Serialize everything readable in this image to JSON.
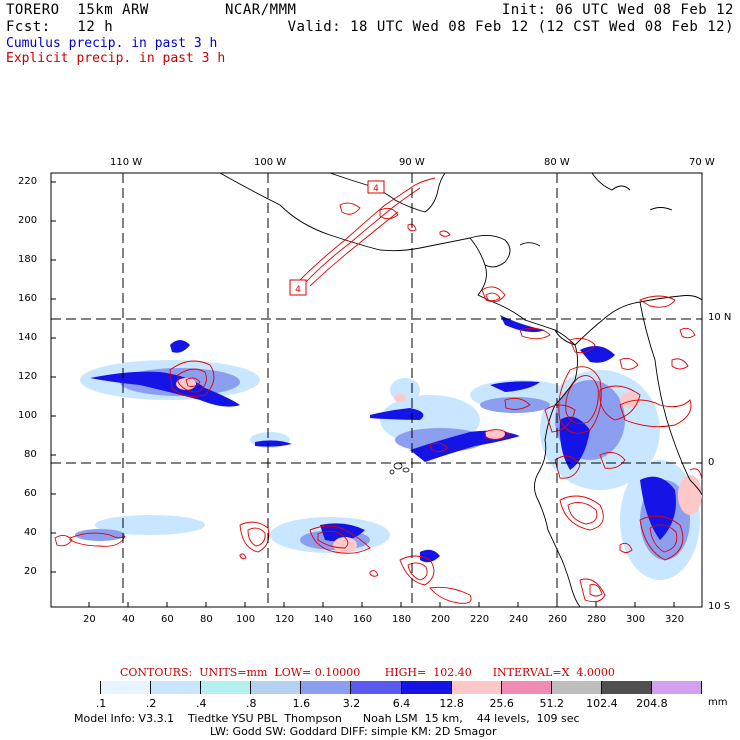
{
  "header": {
    "model": "TORERO  15km ARW",
    "center": "NCAR/MMM",
    "init": "Init: 06 UTC Wed 08 Feb 12",
    "fcst": "Fcst:   12 h",
    "valid": "Valid: 18 UTC Wed 08 Feb 12 (12 CST Wed 08 Feb 12)",
    "legend_cumulus": "Cumulus precip. in past 3 h",
    "legend_explicit": "Explicit precip. in past 3 h"
  },
  "colors": {
    "cumulus": "#0000cc",
    "explicit": "#cc0000"
  },
  "map": {
    "lon_labels": [
      "110 W",
      "100 W",
      "90 W",
      "80 W",
      "70 W"
    ],
    "lat_labels": [
      "10 N",
      "0",
      "10 S"
    ],
    "y_ticks": [
      "20",
      "40",
      "60",
      "80",
      "100",
      "120",
      "140",
      "160",
      "180",
      "200",
      "220"
    ],
    "x_ticks": [
      "20",
      "40",
      "60",
      "80",
      "100",
      "120",
      "140",
      "160",
      "180",
      "200",
      "220",
      "240",
      "260",
      "280",
      "300",
      "320"
    ],
    "boxed_labels": [
      "4",
      "4"
    ]
  },
  "contours": {
    "text": "CONTOURS:  UNITS=mm  LOW= 0.10000       HIGH=  102.40      INTERVAL=X  4.0000"
  },
  "colorbar": {
    "labels": [
      ".1",
      ".2",
      ".4",
      ".8",
      "1.6",
      "3.2",
      "6.4",
      "12.8",
      "25.6",
      "51.2",
      "102.4",
      "204.8"
    ],
    "colors": [
      "#ffffff",
      "#e8f4ff",
      "#c8e6ff",
      "#b4f0f0",
      "#b4d2f0",
      "#8c9ef0",
      "#5a5af0",
      "#1414e6",
      "#ffc8c8",
      "#f08cb4",
      "#bebebe",
      "#505050",
      "#d2a0f0"
    ],
    "unit": "mm"
  },
  "footer": {
    "line1": "Model Info: V3.3.1    Tiedtke YSU PBL  Thompson      Noah LSM  15 km,    44 levels,  109 sec",
    "line2": "LW: Godd SW: Goddard DIFF: simple KM: 2D Smagor"
  }
}
